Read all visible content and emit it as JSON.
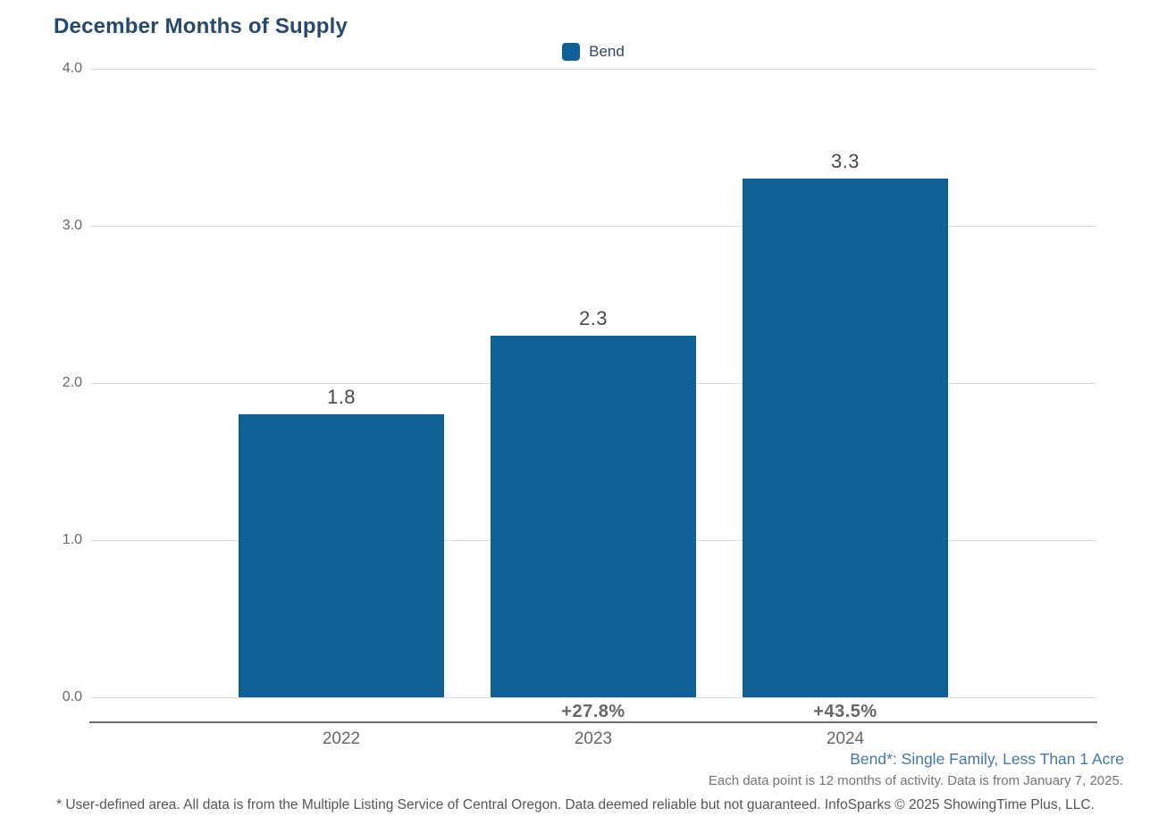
{
  "chart_data": {
    "type": "bar",
    "title": "December Months of Supply",
    "categories": [
      "2022",
      "2023",
      "2024"
    ],
    "series": [
      {
        "name": "Bend",
        "values": [
          1.8,
          2.3,
          3.3
        ],
        "color": "#105f96"
      }
    ],
    "value_labels": [
      "1.8",
      "2.3",
      "3.3"
    ],
    "pct_change_labels": [
      "",
      "+27.8%",
      "+43.5%"
    ],
    "xlabel": "",
    "ylabel": "",
    "ylim": [
      0,
      4
    ],
    "ytick_values": [
      0,
      1,
      2,
      3,
      4
    ],
    "ytick_labels": [
      "0.0",
      "1.0",
      "2.0",
      "3.0",
      "4.0"
    ],
    "grid": "horizontal",
    "legend_position": "top-center"
  },
  "notes": {
    "series_definition": "Bend*: Single Family, Less Than 1 Acre",
    "data_period": "Each data point is 12 months of activity. Data is from January 7, 2025.",
    "disclaimer": "* User-defined area. All data is from the Multiple Listing Service of Central Oregon. Data deemed reliable but not guaranteed. InfoSparks © 2025 ShowingTime Plus, LLC."
  },
  "colors": {
    "bar": "#105f96",
    "title": "#27496d",
    "gridline": "#dddddd",
    "axis_line": "#6b6b6b",
    "axis_text": "#666666",
    "value_text": "#4a4a4a",
    "series_note_text": "#4677a5"
  }
}
